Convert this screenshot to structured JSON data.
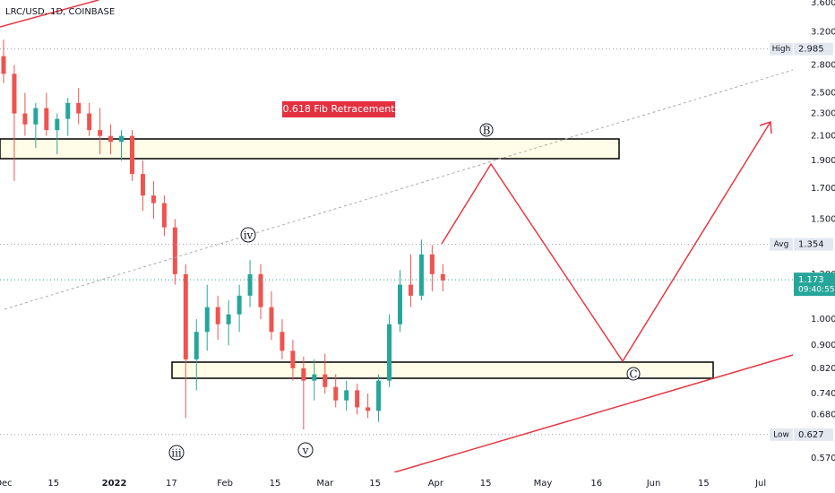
{
  "chart_data": {
    "type": "candlestick",
    "title": "LRC/USD, 1D, COINBASE",
    "annotation": "0.618 Fib Retracement",
    "wave_labels": [
      "B",
      "iv",
      "iii",
      "v",
      "C"
    ],
    "log_scale": true,
    "up_color": "#26a69a",
    "down_color": "#ef5350",
    "x": [
      "2021-12-01",
      "2021-12-04",
      "2021-12-07",
      "2021-12-10",
      "2021-12-13",
      "2021-12-16",
      "2021-12-19",
      "2021-12-22",
      "2021-12-25",
      "2021-12-28",
      "2021-12-31",
      "2022-01-03",
      "2022-01-06",
      "2022-01-09",
      "2022-01-12",
      "2022-01-15",
      "2022-01-18",
      "2022-01-21",
      "2022-01-24",
      "2022-01-27",
      "2022-01-30",
      "2022-02-02",
      "2022-02-05",
      "2022-02-08",
      "2022-02-11",
      "2022-02-14",
      "2022-02-17",
      "2022-02-20",
      "2022-02-23",
      "2022-02-26",
      "2022-03-01",
      "2022-03-04",
      "2022-03-07",
      "2022-03-10",
      "2022-03-13",
      "2022-03-16",
      "2022-03-19",
      "2022-03-22",
      "2022-03-25",
      "2022-03-28",
      "2022-03-31",
      "2022-04-03"
    ],
    "open": [
      2.9,
      2.7,
      2.3,
      2.2,
      2.35,
      2.15,
      2.25,
      2.4,
      2.3,
      2.15,
      2.1,
      2.05,
      2.1,
      1.8,
      1.65,
      1.6,
      1.45,
      1.2,
      0.85,
      0.95,
      1.05,
      0.98,
      1.02,
      1.1,
      1.2,
      1.05,
      0.95,
      0.88,
      0.82,
      0.78,
      0.8,
      0.76,
      0.72,
      0.75,
      0.7,
      0.69,
      0.78,
      0.98,
      1.15,
      1.1,
      1.3,
      1.2
    ],
    "high": [
      3.1,
      2.8,
      2.5,
      2.4,
      2.5,
      2.3,
      2.45,
      2.55,
      2.4,
      2.35,
      2.2,
      2.15,
      2.15,
      1.9,
      1.75,
      1.65,
      1.5,
      1.25,
      1.0,
      1.15,
      1.1,
      1.08,
      1.15,
      1.27,
      1.25,
      1.12,
      1.0,
      0.92,
      0.86,
      0.85,
      0.87,
      0.8,
      0.78,
      0.77,
      0.74,
      0.8,
      1.02,
      1.22,
      1.3,
      1.38,
      1.35,
      1.25
    ],
    "low": [
      2.6,
      1.75,
      2.1,
      2.0,
      2.1,
      1.95,
      2.1,
      2.2,
      2.1,
      1.95,
      1.95,
      1.9,
      1.75,
      1.55,
      1.5,
      1.4,
      1.15,
      0.67,
      0.75,
      0.88,
      0.92,
      0.9,
      0.95,
      1.05,
      1.0,
      0.92,
      0.85,
      0.78,
      0.64,
      0.72,
      0.74,
      0.7,
      0.69,
      0.68,
      0.67,
      0.66,
      0.76,
      0.95,
      1.05,
      1.08,
      1.12,
      1.12
    ],
    "close": [
      2.7,
      2.3,
      2.2,
      2.35,
      2.15,
      2.25,
      2.4,
      2.3,
      2.15,
      2.1,
      2.05,
      2.1,
      1.8,
      1.65,
      1.6,
      1.45,
      1.2,
      0.85,
      0.95,
      1.05,
      0.98,
      1.02,
      1.1,
      1.2,
      1.05,
      0.95,
      0.88,
      0.82,
      0.78,
      0.8,
      0.76,
      0.72,
      0.75,
      0.7,
      0.69,
      0.78,
      0.98,
      1.15,
      1.1,
      1.3,
      1.2,
      1.17
    ],
    "xlim": [
      "2021-11-30",
      "2022-07-10"
    ],
    "xticks": [
      {
        "value": "2021-12-01",
        "label": "Dec"
      },
      {
        "value": "2021-12-15",
        "label": "15"
      },
      {
        "value": "2022-01-01",
        "label": "2022"
      },
      {
        "value": "2022-01-17",
        "label": "17"
      },
      {
        "value": "2022-02-01",
        "label": "Feb"
      },
      {
        "value": "2022-02-15",
        "label": "15"
      },
      {
        "value": "2022-03-01",
        "label": "Mar"
      },
      {
        "value": "2022-03-15",
        "label": "15"
      },
      {
        "value": "2022-04-01",
        "label": "Apr"
      },
      {
        "value": "2022-04-15",
        "label": "15"
      },
      {
        "value": "2022-05-01",
        "label": "May"
      },
      {
        "value": "2022-05-16",
        "label": "16"
      },
      {
        "value": "2022-06-01",
        "label": "Jun"
      },
      {
        "value": "2022-06-15",
        "label": "15"
      },
      {
        "value": "2022-07-01",
        "label": "Jul"
      }
    ],
    "ylim": [
      0.538,
      3.64
    ],
    "yticks": [
      {
        "value": 3.6,
        "label": "3.600"
      },
      {
        "value": 3.2,
        "label": "3.200"
      },
      {
        "value": 2.8,
        "label": "2.800"
      },
      {
        "value": 2.5,
        "label": "2.500"
      },
      {
        "value": 2.3,
        "label": "2.300"
      },
      {
        "value": 2.1,
        "label": "2.100"
      },
      {
        "value": 1.9,
        "label": "1.900"
      },
      {
        "value": 1.7,
        "label": "1.700"
      },
      {
        "value": 1.5,
        "label": "1.500"
      },
      {
        "value": 1.2,
        "label": "1.200"
      },
      {
        "value": 1.0,
        "label": "1.000"
      },
      {
        "value": 0.9,
        "label": "0.900"
      },
      {
        "value": 0.82,
        "label": "0.820"
      },
      {
        "value": 0.74,
        "label": "0.740"
      },
      {
        "value": 0.68,
        "label": "0.680"
      },
      {
        "value": 0.57,
        "label": "0.570"
      }
    ],
    "levels": [
      {
        "name": "High",
        "value": 2.985
      },
      {
        "name": "Avg",
        "value": 1.354
      },
      {
        "name": "Low",
        "value": 0.627
      }
    ],
    "last_price": {
      "value": 1.173,
      "countdown": "09:40:55"
    }
  }
}
